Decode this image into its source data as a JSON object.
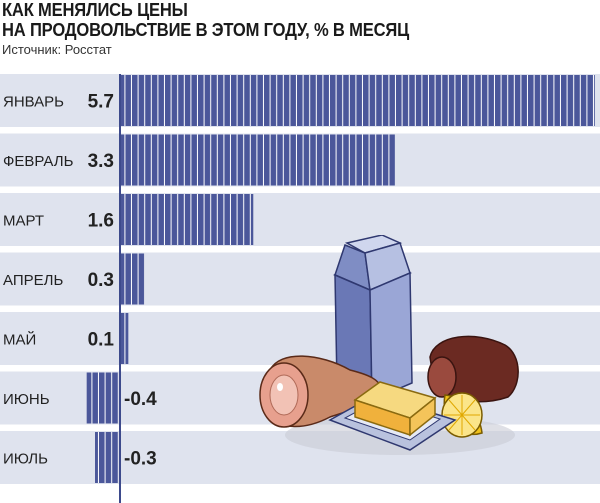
{
  "colors": {
    "band": "#dfe3ee",
    "bar_fill": "#4b579a",
    "bar_stripe": "#ffffff",
    "zero_line": "#3d4a8c"
  },
  "illustration": {
    "icons": [
      "milk-carton-icon",
      "ham-icon",
      "butter-dish-icon",
      "sausage-icon",
      "lemon-icon"
    ]
  },
  "chart_data": {
    "type": "bar",
    "orientation": "horizontal",
    "title": "КАК МЕНЯЛИСЬ ЦЕНЫ НА ПРОДОВОЛЬСТВИЕ В ЭТОМ ГОДУ, % В МЕСЯЦ",
    "title_lines": [
      "КАК МЕНЯЛИСЬ ЦЕНЫ",
      "НА ПРОДОВОЛЬСТВИЕ В ЭТОМ ГОДУ, % В МЕСЯЦ"
    ],
    "source": "Источник: Росстат",
    "categories": [
      "ЯНВАРЬ",
      "ФЕВРАЛЬ",
      "МАРТ",
      "АПРЕЛЬ",
      "МАЙ",
      "ИЮНЬ",
      "ИЮЛЬ"
    ],
    "values": [
      5.7,
      3.3,
      1.6,
      0.3,
      0.1,
      -0.4,
      -0.3
    ],
    "value_labels": [
      "5.7",
      "3.3",
      "1.6",
      "0.3",
      "0.1",
      "-0.4",
      "-0.3"
    ],
    "xlim": [
      -0.5,
      5.7
    ],
    "grid": false,
    "legend": "none"
  }
}
